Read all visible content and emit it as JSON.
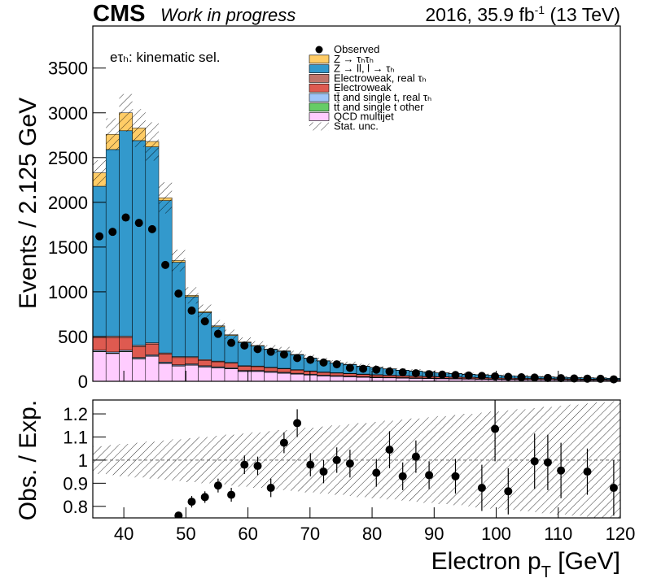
{
  "chart_data": [
    {
      "type": "stacked_histogram",
      "cms_label": "CMS",
      "extra_label": "Work in progress",
      "lumi": {
        "prefix": "2016, 35.9 fb",
        "sup": "-1",
        "suffix": " (13 TeV)"
      },
      "annotation": "eτₕ: kinematic sel.",
      "y_label": "Events / 2.125 GeV",
      "xlim": [
        35,
        120
      ],
      "xticks": [
        40,
        50,
        60,
        70,
        80,
        90,
        100,
        110,
        120
      ],
      "ylim": [
        0,
        3970
      ],
      "yticks": [
        0,
        500,
        1000,
        1500,
        2000,
        2500,
        3000,
        3500
      ],
      "bins": [
        35,
        37.125,
        39.25,
        41.375,
        43.5,
        45.625,
        47.75,
        49.875,
        52,
        54.125,
        56.25,
        58.375,
        60.5,
        62.625,
        64.75,
        66.875,
        69,
        71.125,
        73.25,
        75.375,
        77.5,
        79.625,
        81.75,
        83.875,
        86,
        88.125,
        90.25,
        92.375,
        94.5,
        96.625,
        98.75,
        100.875,
        103,
        105.125,
        107.25,
        109.375,
        111.5,
        113.625,
        115.75,
        117.875,
        120
      ],
      "observed": {
        "name": "Observed",
        "color": "#000000",
        "values": [
          1620,
          1670,
          1830,
          1770,
          1700,
          1300,
          980,
          790,
          670,
          530,
          430,
          400,
          360,
          330,
          300,
          260,
          240,
          210,
          190,
          150,
          140,
          130,
          110,
          100,
          90,
          80,
          75,
          70,
          65,
          60,
          55,
          50,
          45,
          42,
          38,
          35,
          32,
          30,
          28,
          22
        ]
      },
      "series": [
        {
          "name": "Z → τₕτₕ",
          "color": "#ffcc66",
          "values": [
            150,
            170,
            200,
            140,
            60,
            30,
            20,
            15,
            12,
            10,
            8,
            7,
            6,
            5,
            5,
            4,
            4,
            3,
            3,
            3,
            3,
            2,
            2,
            2,
            2,
            2,
            2,
            2,
            2,
            1,
            1,
            1,
            1,
            1,
            1,
            1,
            1,
            1,
            1,
            1
          ]
        },
        {
          "name": "Z → ll, l → τₕ",
          "color": "#3399cc",
          "values": [
            1677,
            2086,
            2296,
            2288,
            2190,
            1703,
            1054,
            670,
            525,
            384,
            302,
            259,
            223,
            198,
            190,
            166,
            140,
            123,
            106,
            98,
            86,
            79,
            70,
            60,
            54,
            48,
            41,
            37,
            33,
            31,
            29,
            25,
            22,
            21,
            18,
            16,
            14,
            14,
            12,
            11
          ]
        },
        {
          "name": "Electroweak, real τₕ",
          "color": "#c0746a",
          "values": [
            15,
            16,
            16,
            15,
            14,
            12,
            11,
            10,
            9,
            8,
            8,
            7,
            7,
            6,
            6,
            5,
            5,
            5,
            4,
            4,
            4,
            4,
            3,
            3,
            3,
            3,
            3,
            3,
            2,
            2,
            2,
            2,
            2,
            2,
            2,
            2,
            2,
            2,
            2,
            2
          ]
        },
        {
          "name": "Electroweak",
          "color": "#de5a50",
          "values": [
            140,
            160,
            140,
            120,
            120,
            90,
            80,
            70,
            60,
            55,
            50,
            45,
            42,
            40,
            38,
            35,
            32,
            30,
            28,
            26,
            24,
            22,
            20,
            18,
            17,
            16,
            15,
            14,
            13,
            12,
            11,
            10,
            10,
            9,
            9,
            8,
            8,
            7,
            7,
            6
          ]
        },
        {
          "name": "tt̄ and single t, real τₕ",
          "color": "#9fc5f8",
          "values": [
            12,
            12,
            12,
            11,
            11,
            10,
            10,
            10,
            9,
            9,
            8,
            8,
            8,
            7,
            7,
            7,
            6,
            6,
            6,
            6,
            5,
            5,
            5,
            5,
            5,
            4,
            4,
            4,
            4,
            4,
            3,
            3,
            3,
            3,
            3,
            3,
            3,
            2,
            2,
            2
          ]
        },
        {
          "name": "tt̄ and single t other",
          "color": "#66cc66",
          "values": [
            6,
            6,
            6,
            6,
            5,
            5,
            5,
            5,
            5,
            4,
            4,
            4,
            4,
            4,
            4,
            3,
            3,
            3,
            3,
            3,
            3,
            3,
            2,
            2,
            2,
            2,
            2,
            2,
            2,
            2,
            2,
            2,
            2,
            1,
            1,
            1,
            1,
            1,
            1,
            1
          ]
        },
        {
          "name": "QCD multijet",
          "color": "#ffccff",
          "values": [
            330,
            310,
            330,
            250,
            280,
            200,
            170,
            180,
            160,
            150,
            140,
            110,
            110,
            100,
            90,
            80,
            70,
            60,
            55,
            50,
            45,
            40,
            38,
            35,
            32,
            30,
            28,
            26,
            24,
            22,
            20,
            19,
            18,
            17,
            16,
            15,
            14,
            13,
            12,
            11
          ]
        }
      ],
      "stat_unc_name": "Stat. unc.",
      "stat_unc": [
        0.06,
        0.065,
        0.07,
        0.075,
        0.08,
        0.085,
        0.09,
        0.095,
        0.1,
        0.105,
        0.11,
        0.115,
        0.12,
        0.125,
        0.13,
        0.135,
        0.14,
        0.145,
        0.15,
        0.155,
        0.16,
        0.165,
        0.17,
        0.175,
        0.18,
        0.185,
        0.19,
        0.195,
        0.2,
        0.205,
        0.21,
        0.215,
        0.22,
        0.225,
        0.23,
        0.235,
        0.24,
        0.245,
        0.25,
        0.255
      ]
    },
    {
      "type": "ratio",
      "y_label": "Obs. / Exp.",
      "x_label": {
        "main": "Electron p",
        "sub": "T",
        "unit": " [GeV]"
      },
      "xlim": [
        35,
        120
      ],
      "xticks": [
        40,
        50,
        60,
        70,
        80,
        90,
        100,
        110,
        120
      ],
      "ylim": [
        0.75,
        1.26
      ],
      "yticks": [
        0.8,
        0.9,
        1,
        1.1,
        1.2
      ],
      "values": [
        null,
        null,
        null,
        null,
        null,
        null,
        0.76,
        0.82,
        0.84,
        0.89,
        0.85,
        0.98,
        0.975,
        0.88,
        1.075,
        1.16,
        0.98,
        0.95,
        1.0,
        0.985,
        null,
        0.945,
        1.045,
        0.93,
        1.015,
        0.935,
        null,
        0.93,
        null,
        0.88,
        1.135,
        0.865,
        null,
        0.995,
        0.99,
        0.955,
        null,
        0.95,
        null,
        0.88
      ],
      "errors": [
        null,
        null,
        null,
        null,
        null,
        null,
        0.015,
        0.025,
        0.025,
        0.03,
        0.03,
        0.04,
        0.04,
        0.04,
        0.045,
        0.06,
        0.05,
        0.05,
        0.055,
        0.06,
        null,
        0.06,
        0.08,
        0.06,
        0.07,
        0.06,
        null,
        0.075,
        null,
        0.1,
        0.14,
        0.1,
        null,
        0.12,
        0.12,
        0.12,
        null,
        0.1,
        null,
        0.12
      ]
    }
  ]
}
